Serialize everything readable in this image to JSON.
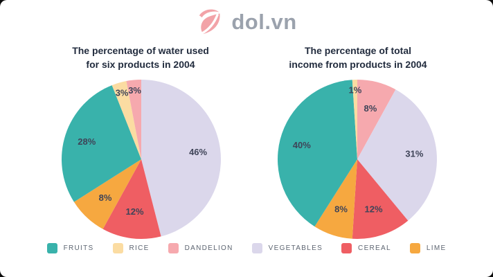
{
  "logo": {
    "text": "dol.vn",
    "icon_color": "#f2a3a8",
    "text_color": "#9ba2ad"
  },
  "colors": {
    "FRUITS": "#39b2ab",
    "RICE": "#fbdca2",
    "DANDELION": "#f6a9ae",
    "VEGETABLES": "#dbd7eb",
    "CEREAL": "#ef5e63",
    "LIME": "#f6a840",
    "slice_label_text": "#3f4458",
    "title_text": "#222c3e",
    "legend_text": "#5d6571"
  },
  "chart_data": [
    {
      "type": "pie",
      "title_lines": [
        "The percentage of water used",
        "for six products in 2004"
      ],
      "start_angle_deg": 0,
      "direction": "clockwise",
      "unit": "%",
      "slices": [
        {
          "category": "VEGETABLES",
          "value": 46,
          "label": "46%"
        },
        {
          "category": "CEREAL",
          "value": 12,
          "label": "12%"
        },
        {
          "category": "LIME",
          "value": 8,
          "label": "8%"
        },
        {
          "category": "FRUITS",
          "value": 28,
          "label": "28%"
        },
        {
          "category": "RICE",
          "value": 3,
          "label": "3%"
        },
        {
          "category": "DANDELION",
          "value": 3,
          "label": "3%"
        }
      ]
    },
    {
      "type": "pie",
      "title_lines": [
        "The percentage of total",
        "income from products in 2004"
      ],
      "start_angle_deg": 0,
      "direction": "clockwise",
      "unit": "%",
      "slices": [
        {
          "category": "DANDELION",
          "value": 8,
          "label": "8%"
        },
        {
          "category": "VEGETABLES",
          "value": 31,
          "label": "31%"
        },
        {
          "category": "CEREAL",
          "value": 12,
          "label": "12%"
        },
        {
          "category": "LIME",
          "value": 8,
          "label": "8%"
        },
        {
          "category": "FRUITS",
          "value": 40,
          "label": "40%"
        },
        {
          "category": "RICE",
          "value": 1,
          "label": "1%"
        }
      ]
    }
  ],
  "legend": {
    "position": "bottom-center",
    "items": [
      {
        "label": "FRUITS"
      },
      {
        "label": "RICE"
      },
      {
        "label": "DANDELION"
      },
      {
        "label": "VEGETABLES"
      },
      {
        "label": "CEREAL"
      },
      {
        "label": "LIME"
      }
    ]
  }
}
